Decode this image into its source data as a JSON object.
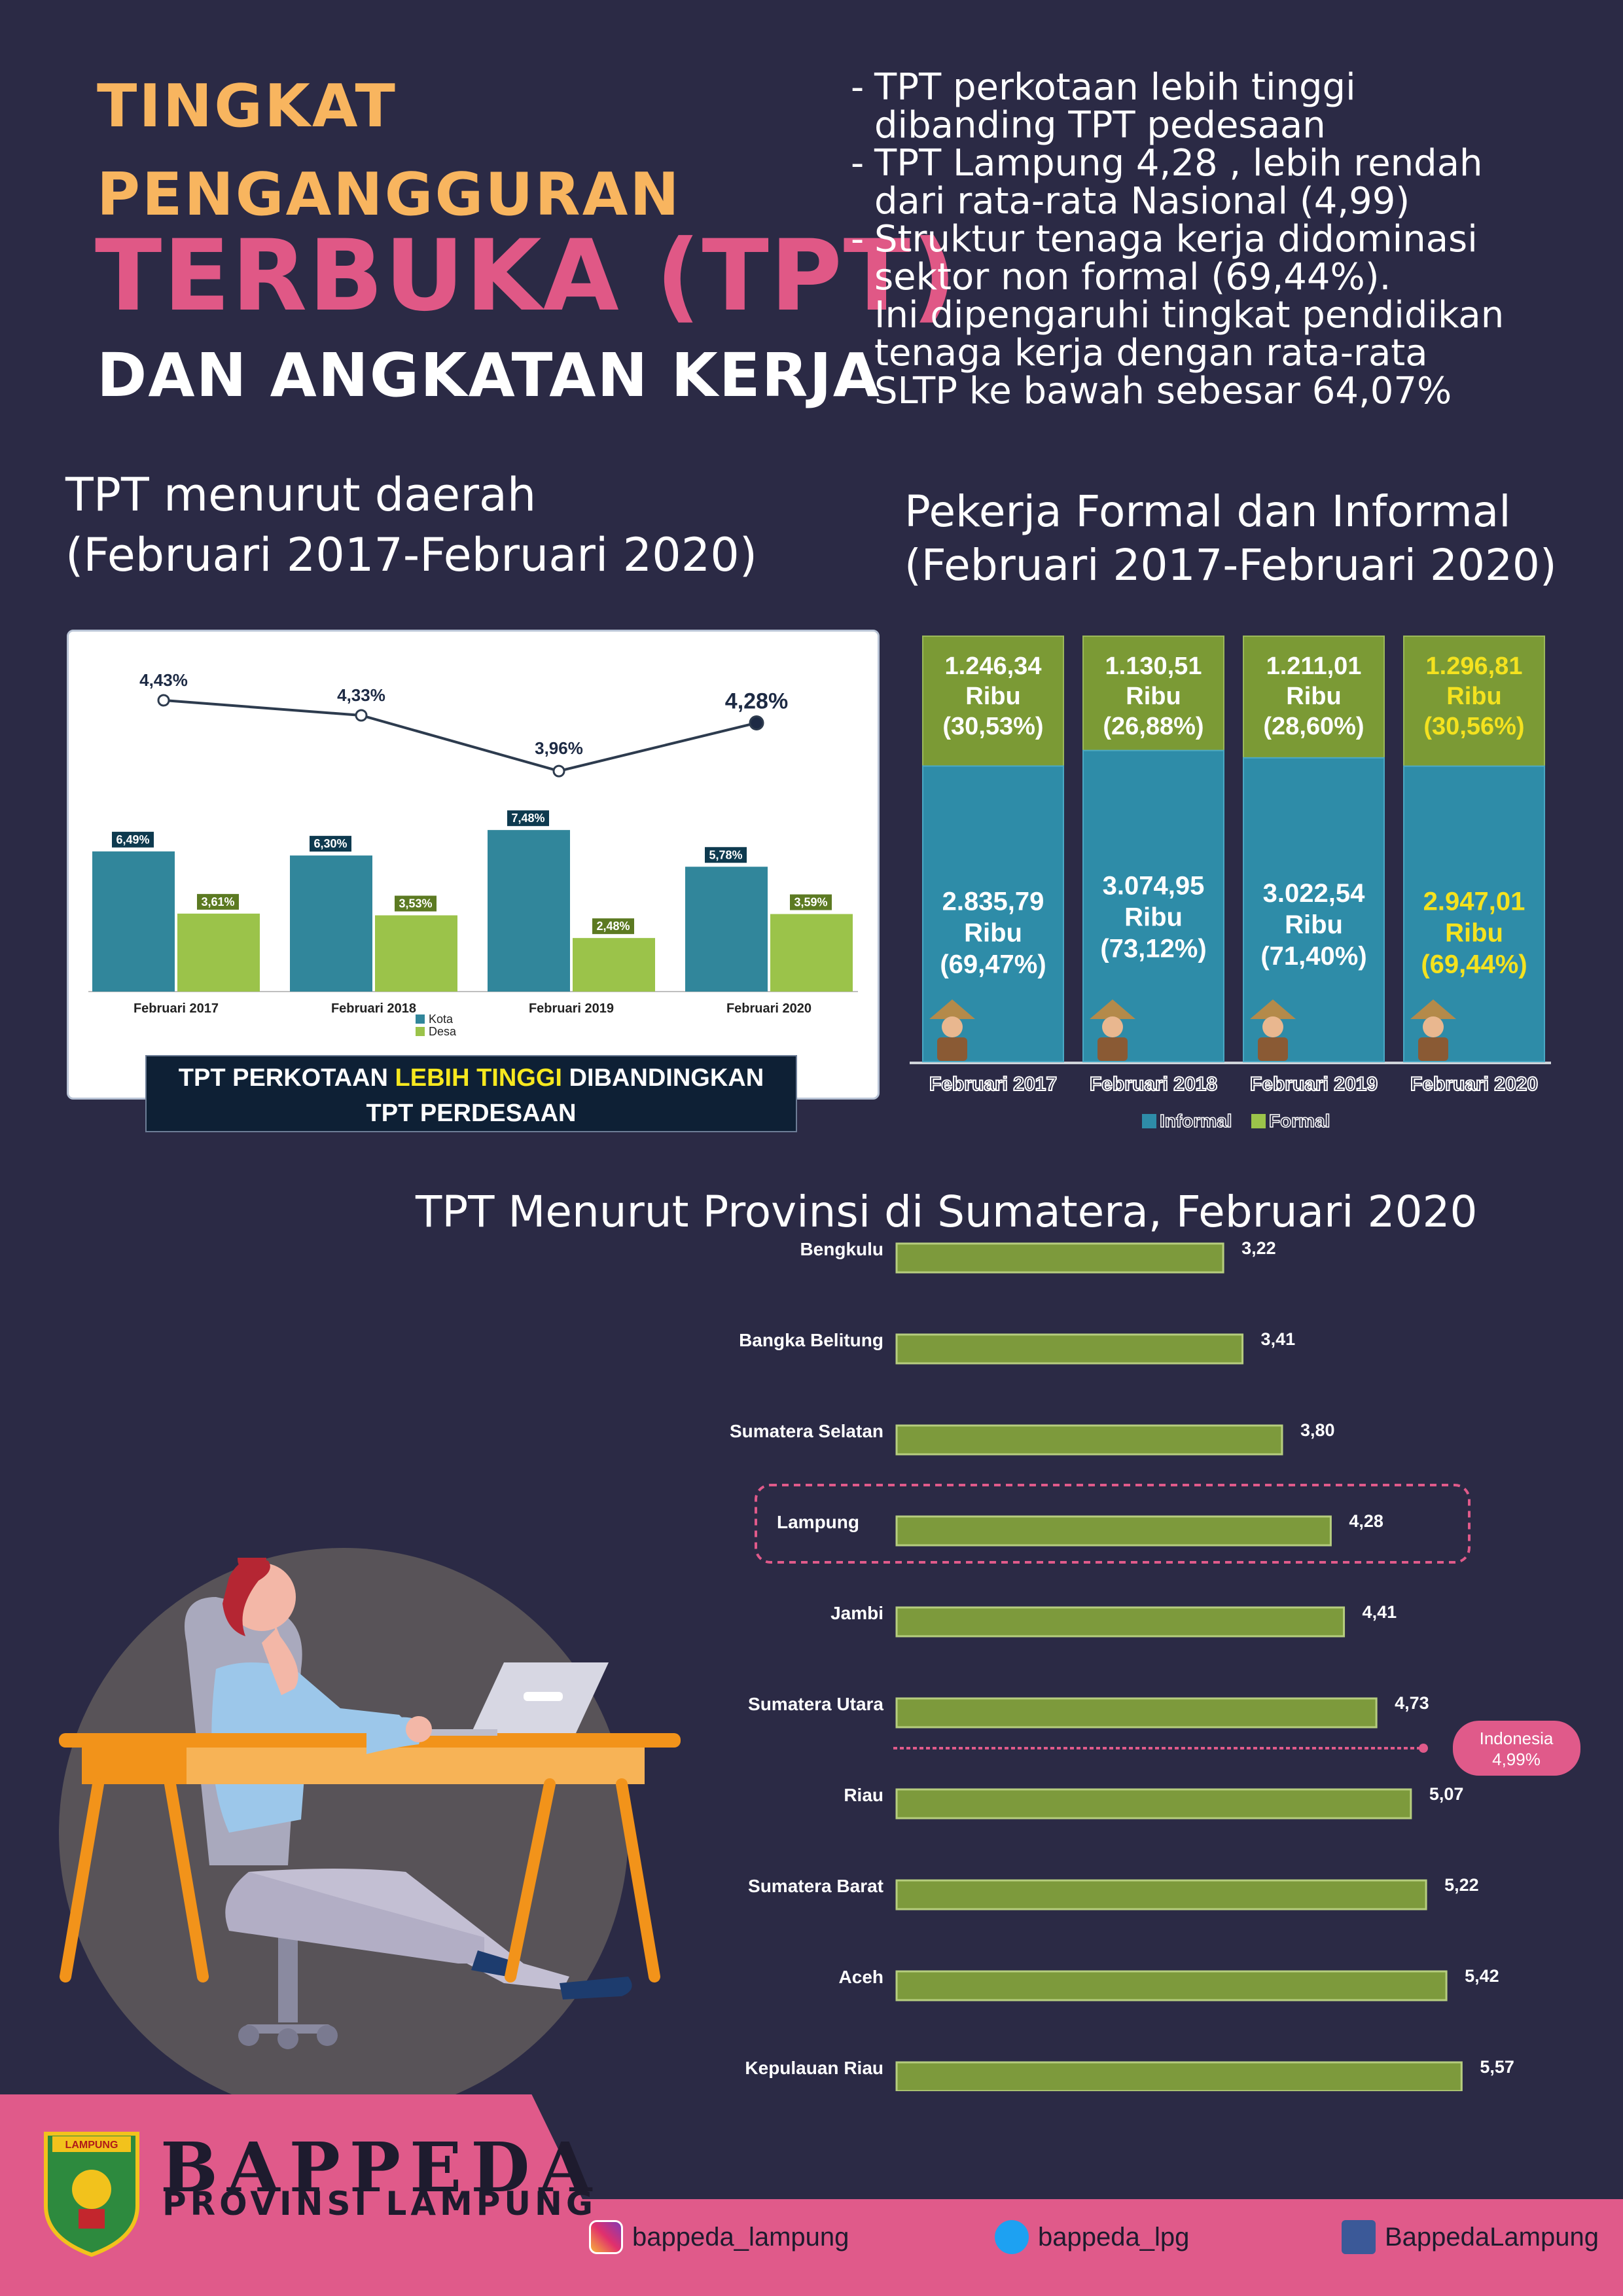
{
  "header": {
    "title_line1": "TINGKAT",
    "title_line2": "PENGANGGURAN",
    "title_line3": "TERBUKA (TPT)",
    "title_line4": "DAN ANGKATAN KERJA"
  },
  "key_points": [
    "TPT perkotaan lebih tinggi\ndibanding TPT pedesaan",
    "TPT Lampung 4,28 , lebih rendah\ndari rata-rata Nasional (4,99)",
    "Struktur tenaga kerja didominasi\nsektor non formal (69,44%).\nIni dipengaruhi tingkat pendidikan\ntenaga kerja dengan rata-rata\nSLTP ke bawah sebesar 64,07%"
  ],
  "section1": {
    "title_line1": "TPT menurut daerah",
    "title_line2": "(Februari 2017-Februari 2020)"
  },
  "section2": {
    "title_line1": "Pekerja Formal dan Informal",
    "title_line2": "(Februari 2017-Februari 2020)"
  },
  "section3": {
    "title": "TPT Menurut Provinsi di Sumatera, Februari 2020"
  },
  "banner": {
    "part1": "TPT PERKOTAAN ",
    "highlight": "LEBIH TINGGI",
    "part2": " DIBANDINGKAN",
    "line2": "TPT PERDESAAN"
  },
  "colors": {
    "background": "#2b2a45",
    "title_orange": "#f8b55f",
    "title_pink": "#e05886",
    "kota": "#31869b",
    "desa": "#9bc34a",
    "informal": "#2e8ca8",
    "formal": "#7b9a35",
    "province_bar": "#7d9a3c",
    "footer": "#e05a8a"
  },
  "chart_data": [
    {
      "type": "bar",
      "categories": [
        "Februari 2017",
        "Februari 2018",
        "Februari 2019",
        "Februari 2020"
      ],
      "series": [
        {
          "name": "Kota",
          "values": [
            6.49,
            6.3,
            7.48,
            5.78
          ],
          "labels": [
            "6,49%",
            "6,30%",
            "7,48%",
            "5,78%"
          ]
        },
        {
          "name": "Desa",
          "values": [
            3.61,
            3.53,
            2.48,
            3.59
          ],
          "labels": [
            "3,61%",
            "3,53%",
            "2,48%",
            "3,59%"
          ]
        }
      ],
      "line": {
        "values": [
          4.43,
          4.33,
          3.96,
          4.28
        ],
        "labels": [
          "4,43%",
          "4,33%",
          "3,96%",
          "4,28%"
        ]
      },
      "legend": [
        "Kota",
        "Desa"
      ],
      "grid": false
    },
    {
      "type": "bar",
      "stacked": true,
      "categories": [
        "Februari 2017",
        "Februari 2018",
        "Februari 2019",
        "Februari 2020"
      ],
      "series": [
        {
          "name": "Informal",
          "values": [
            69.47,
            73.12,
            71.4,
            69.44
          ],
          "labels": [
            "2.835,79|Ribu|(69,47%)",
            "3.074,95|Ribu|(73,12%)",
            "3.022,54|Ribu|(71,40%)",
            "2.947,01|Ribu|(69,44%)"
          ]
        },
        {
          "name": "Formal",
          "values": [
            30.53,
            26.88,
            28.6,
            30.56
          ],
          "labels": [
            "1.246,34|Ribu|(30,53%)",
            "1.130,51|Ribu|(26,88%)",
            "1.211,01|Ribu|(28,60%)",
            "1.296,81|Ribu|(30,56%)"
          ]
        }
      ],
      "legend": [
        "Informal",
        "Formal"
      ],
      "legend_position": "bottom"
    },
    {
      "type": "bar",
      "orientation": "horizontal",
      "categories": [
        "Bengkulu",
        "Bangka Belitung",
        "Sumatera Selatan",
        "Lampung",
        "Jambi",
        "Sumatera Utara",
        "Riau",
        "Sumatera Barat",
        "Aceh",
        "Kepulauan Riau"
      ],
      "values": [
        3.22,
        3.41,
        3.8,
        4.28,
        4.41,
        4.73,
        5.07,
        5.22,
        5.42,
        5.57
      ],
      "labels": [
        "3,22",
        "3,41",
        "3,80",
        "4,28",
        "4,41",
        "4,73",
        "5,07",
        "5,22",
        "5,42",
        "5,57"
      ],
      "xlim": [
        0,
        6
      ],
      "xticks": [
        "0,00",
        "1,00",
        "2,00",
        "3,00",
        "4,00",
        "5,00",
        "6,00"
      ],
      "highlight": "Lampung",
      "reference": {
        "label": "Indonesia",
        "value_label": "4,99%",
        "value": 4.99
      }
    }
  ],
  "footer": {
    "brand": "BAPPEDA",
    "sub": "PROVINSI LAMPUNG",
    "logo_text": "LAMPUNG",
    "instagram": "bappeda_lampung",
    "twitter": "bappeda_lpg",
    "facebook": "BappedaLampung"
  }
}
